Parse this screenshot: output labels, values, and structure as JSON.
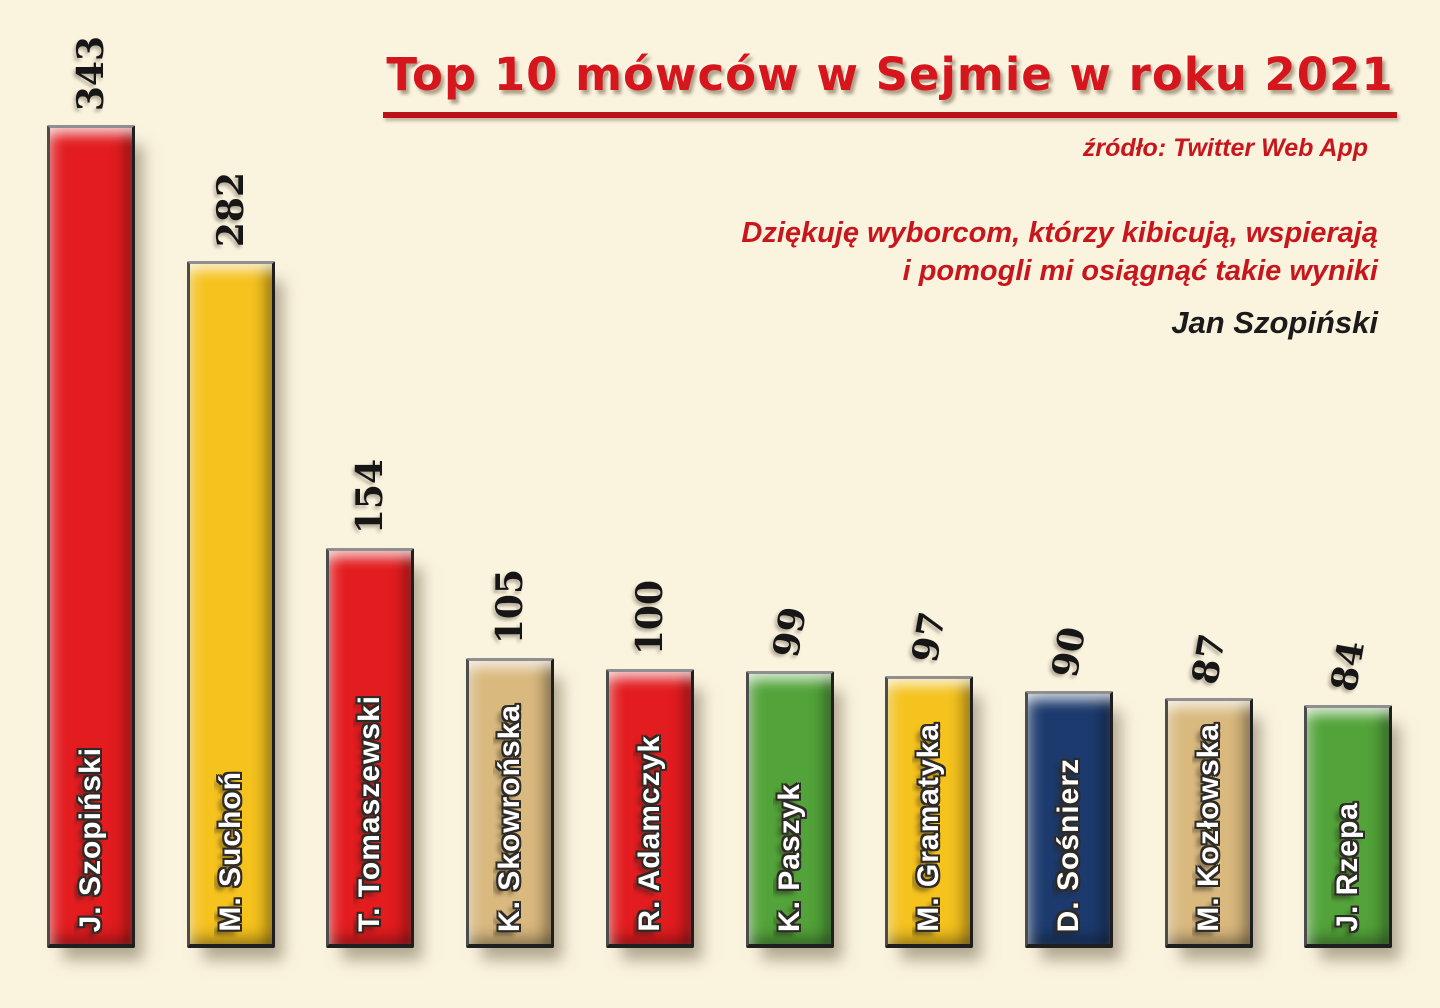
{
  "header": {
    "title": "Top 10 mówców w Sejmie w roku 2021",
    "source": "źródło: Twitter Web App"
  },
  "quote": {
    "line1": "Dziękuję wyborcom, którzy kibicują, wspierają",
    "line2": "i pomogli mi osiągnąć takie wyniki",
    "attribution": "Jan Szopiński"
  },
  "colors": {
    "background": "#faf3de",
    "accent_red": "#c8161d",
    "title_red": "#d6161d",
    "value_text": "#161616",
    "name_text": "#ffffff"
  },
  "chart_data": {
    "type": "bar",
    "title": "Top 10 mówców w Sejmie w roku 2021",
    "subtitle": "źródło: Twitter Web App",
    "categories": [
      "J. Szopiński",
      "M. Suchoń",
      "T. Tomaszewski",
      "K. Skowrońska",
      "R. Adamczyk",
      "K. Paszyk",
      "M. Gramatyka",
      "D. Sośnierz",
      "M. Kozłowska",
      "J. Rzepa"
    ],
    "values": [
      343,
      282,
      154,
      105,
      100,
      99,
      97,
      90,
      87,
      84
    ],
    "bar_colors": [
      "#e31c1f",
      "#f5c21e",
      "#e31c1f",
      "#d9b97e",
      "#e31c1f",
      "#52a339",
      "#f5c21e",
      "#1c3a6d",
      "#d9b97e",
      "#52a339"
    ],
    "xlabel": "",
    "ylabel": "",
    "ylim": [
      0,
      360
    ],
    "grid": false,
    "legend": false,
    "value_label_style": "rotated vertical above each bar",
    "category_label_style": "rotated vertical white text inside each bar"
  }
}
